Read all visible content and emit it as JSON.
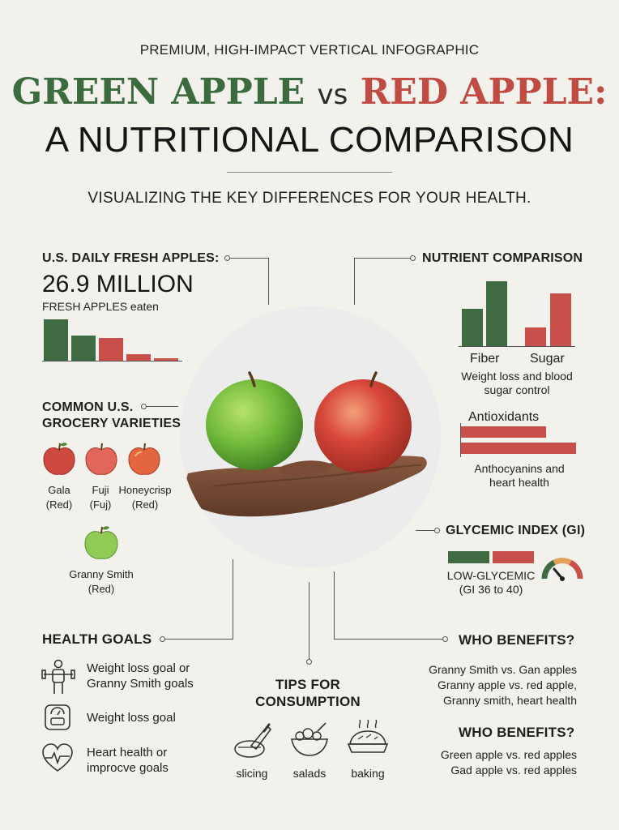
{
  "header": {
    "kicker": "PREMIUM, HIGH-IMPACT VERTICAL INFOGRAPHIC",
    "title_green": "GREEN APPLE",
    "title_vs": "vs",
    "title_red": "RED APPLE:",
    "title_line2": "A NUTRITIONAL COMPARISON",
    "subtitle": "VISUALIZING THE KEY DIFFERENCES FOR YOUR HEALTH."
  },
  "daily": {
    "heading": "U.S. DAILY FRESH APPLES:",
    "value": "26.9 MILLION",
    "caption": "FRESH APPLES eaten",
    "bars": [
      {
        "color": "green",
        "value": 1.0
      },
      {
        "color": "green",
        "value": 0.62
      },
      {
        "color": "red",
        "value": 0.55
      },
      {
        "color": "red",
        "value": 0.18
      },
      {
        "color": "red",
        "value": 0.08
      }
    ]
  },
  "varieties": {
    "heading_line1": "COMMON U.S.",
    "heading_line2": "GROCERY VARIETIES",
    "items": [
      {
        "name": "Gala",
        "note": "(Red)"
      },
      {
        "name": "Fuji",
        "note": "(Fuj)"
      },
      {
        "name": "Honeycrisp",
        "note": "(Red)"
      },
      {
        "name": "Granny Smith",
        "note": "(Red)"
      }
    ]
  },
  "nutrients": {
    "heading": "NUTRIENT COMPARISON",
    "fiber_label": "Fiber",
    "sugar_label": "Sugar",
    "caption_line1": "Weight loss and blood",
    "caption_line2": "sugar control",
    "fiber": {
      "green": 0.58,
      "red": 1.0
    },
    "sugar": {
      "green": 0.3,
      "red": 0.81
    },
    "antioxidants_label": "Antioxidants",
    "antioxidants": {
      "bar1": 0.74,
      "bar2": 1.0
    },
    "antioxidants_caption_line1": "Anthocyanins and",
    "antioxidants_caption_line2": "heart health"
  },
  "glycemic": {
    "heading": "GLYCEMIC INDEX (GI)",
    "label": "LOW-GLYCEMIC",
    "range": "(GI 36 to 40)"
  },
  "health_goals": {
    "heading": "HEALTH GOALS",
    "items": [
      {
        "icon": "dumbbell-person-icon",
        "line1": "Weight loss goal or",
        "line2": "Granny Smith goals"
      },
      {
        "icon": "scale-icon",
        "line1": "Weight loss goal",
        "line2": ""
      },
      {
        "icon": "heart-pulse-icon",
        "line1": "Heart health or",
        "line2": "improcve goals"
      }
    ]
  },
  "tips": {
    "heading_line1": "TIPS FOR",
    "heading_line2": "CONSUMPTION",
    "items": [
      {
        "icon": "knife-slicing-icon",
        "label": "slicing"
      },
      {
        "icon": "salad-bowl-icon",
        "label": "salads"
      },
      {
        "icon": "pie-icon",
        "label": "baking"
      }
    ]
  },
  "benefits1": {
    "heading": "WHO BENEFITS?",
    "lines": [
      "Granny Smith vs. Gan apples",
      "Granny apple vs. red apple,",
      "Granny smith, heart health"
    ]
  },
  "benefits2": {
    "heading": "WHO BENEFITS?",
    "lines": [
      "Green apple vs. red apples",
      "Gad apple vs. red apples"
    ]
  },
  "colors": {
    "green": "#3e6b42",
    "red": "#c8504a",
    "background": "#f2f1ec"
  }
}
